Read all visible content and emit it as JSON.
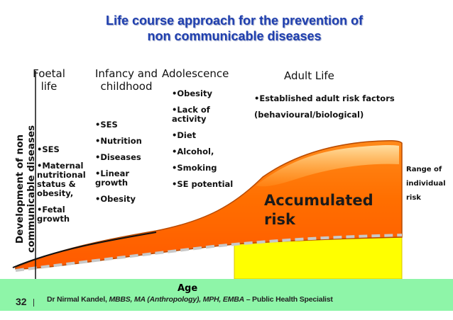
{
  "title": {
    "line1": "Life course approach for the prevention of",
    "line2": "non communicable diseases"
  },
  "stages": {
    "foetal_line1": "Foetal",
    "foetal_line2": "life",
    "infancy_line1": "Infancy and",
    "infancy_line2": "childhood",
    "adolescence": "Adolescence",
    "adult": "Adult Life"
  },
  "y_axis": {
    "line1": "Development of non",
    "line2": "communicable diseases"
  },
  "x_axis": {
    "label": "Age"
  },
  "factors": {
    "foetal": [
      "•SES",
      "•Maternal nutritional status & obesity,",
      "•Fetal growth"
    ],
    "infancy": [
      "•SES",
      "•Nutrition",
      "•Diseases",
      "•Linear growth",
      "•Obesity"
    ],
    "adolescence": [
      "•Obesity",
      "•Lack of activity",
      "•Diet",
      "•Alcohol,",
      "•Smoking",
      "•SE potential"
    ],
    "adult": [
      "•Established adult risk factors",
      "(behavioural/biological)"
    ]
  },
  "accumulated": {
    "line1": "Accumulated",
    "line2": "risk"
  },
  "range": {
    "line1": "Range of",
    "line2": "individual",
    "line3": "risk"
  },
  "footer": {
    "page": "32",
    "author": "Dr Nirmal Kandel, ",
    "degrees": "MBBS, MA (Anthropology), MPH, EMBA",
    "role": " – Public Health Specialist"
  },
  "colors": {
    "title": "#1f3fae",
    "risk_fill": "#ff7a00",
    "risk_highlight": "#ffd27a",
    "range_fill": "#ffff00",
    "footer_band": "#8ef5a8"
  }
}
